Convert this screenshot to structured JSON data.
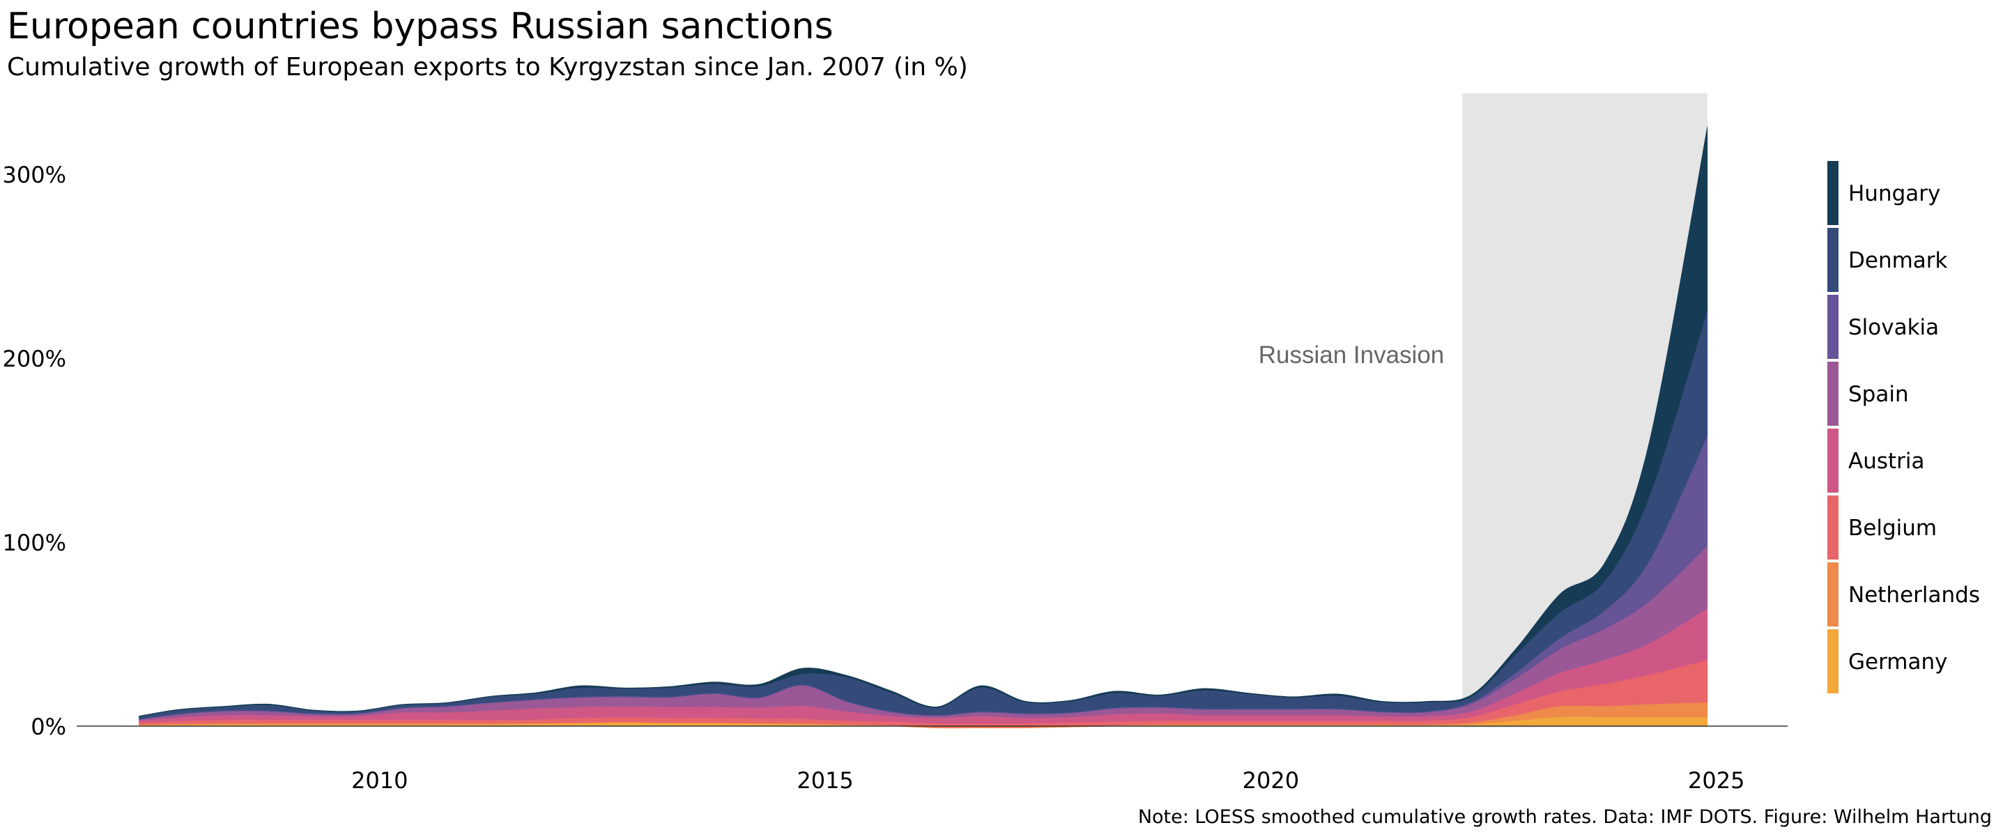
{
  "title": "European countries bypass Russian sanctions",
  "subtitle": "Cumulative growth of European exports to Kyrgyzstan since Jan. 2007 (in %)",
  "note": "Note: LOESS smoothed cumulative growth rates. Data: IMF DOTS. Figure: Wilhelm Hartung",
  "chart_data": {
    "type": "area",
    "stacked": true,
    "x": [
      2007.3,
      2007.75,
      2008.25,
      2008.75,
      2009.25,
      2009.75,
      2010.25,
      2010.75,
      2011.25,
      2011.75,
      2012.25,
      2012.75,
      2013.25,
      2013.75,
      2014.25,
      2014.75,
      2015.25,
      2015.75,
      2016.25,
      2016.75,
      2017.25,
      2017.75,
      2018.25,
      2018.75,
      2019.25,
      2019.75,
      2020.25,
      2020.75,
      2021.25,
      2021.75,
      2022.25,
      2022.75,
      2023.25,
      2023.75,
      2024.25,
      2024.9
    ],
    "series": [
      {
        "name": "Germany",
        "color": "#F3A83B",
        "values": [
          0.5,
          0.8,
          1.0,
          1.0,
          1.0,
          1.0,
          1.0,
          1.0,
          1.0,
          1.2,
          1.5,
          1.8,
          1.5,
          1.5,
          1.2,
          1.0,
          0.5,
          0,
          -1,
          -1,
          -1,
          -0.5,
          0,
          0.5,
          0.5,
          0.5,
          0.5,
          0.5,
          0.5,
          0.5,
          1,
          3,
          5,
          5,
          5,
          5
        ]
      },
      {
        "name": "Netherlands",
        "color": "#EE8A4A",
        "values": [
          0.5,
          0.5,
          0.5,
          0.5,
          0.5,
          0.5,
          0.5,
          0.5,
          0.5,
          0.5,
          0.5,
          0.5,
          0.5,
          0.5,
          0.5,
          0.5,
          0.5,
          0.5,
          0.5,
          0.5,
          0.5,
          0.5,
          0.5,
          0.5,
          0.5,
          0.5,
          0.5,
          0.5,
          0.5,
          0.5,
          1,
          3,
          6,
          6,
          7,
          8
        ]
      },
      {
        "name": "Belgium",
        "color": "#E8656A",
        "values": [
          1,
          1.5,
          2,
          2,
          2,
          2,
          2,
          2,
          2,
          2,
          2.5,
          2.5,
          2.5,
          2.5,
          2.5,
          2.5,
          2,
          2,
          2,
          2,
          2,
          2,
          2,
          2,
          2,
          2,
          2,
          2,
          2,
          2,
          3,
          6,
          8,
          12,
          16,
          23
        ]
      },
      {
        "name": "Austria",
        "color": "#CF5786",
        "values": [
          1,
          2,
          2.5,
          2.5,
          2,
          2,
          4,
          4,
          5,
          6,
          6,
          6,
          6,
          6,
          6,
          7,
          5,
          3,
          3,
          4,
          3,
          3,
          4,
          4,
          3,
          3,
          3,
          3,
          2.5,
          2.5,
          3,
          6,
          10,
          13,
          17,
          28
        ]
      },
      {
        "name": "Spain",
        "color": "#9B5896",
        "values": [
          0.5,
          1.5,
          2,
          2,
          1,
          1,
          2,
          3,
          4,
          4.5,
          5,
          5,
          5,
          7,
          5,
          11,
          5,
          2,
          1,
          2,
          2,
          2,
          3,
          3,
          3,
          3,
          3,
          3,
          2,
          2,
          4,
          8,
          13,
          17,
          23,
          34
        ]
      },
      {
        "name": "Slovakia",
        "color": "#655496",
        "values": [
          0.3,
          0.5,
          0.5,
          0.5,
          0.5,
          0.5,
          0.5,
          0.5,
          0.5,
          0.5,
          0.5,
          0.5,
          0.5,
          0.5,
          0.5,
          0.5,
          0.5,
          0.5,
          0.5,
          0.5,
          0.5,
          0.5,
          0.5,
          0.5,
          0.5,
          0.5,
          0.5,
          0.5,
          0.5,
          0.5,
          1,
          3,
          6,
          10,
          22,
          60
        ]
      },
      {
        "name": "Denmark",
        "color": "#344B7A",
        "values": [
          1.5,
          2,
          2,
          3,
          1.5,
          1,
          1.5,
          1.5,
          3,
          3,
          5,
          4,
          5,
          5,
          6,
          6,
          13,
          10,
          4,
          13,
          6,
          6,
          8,
          6,
          10,
          8,
          6,
          7,
          5,
          5,
          3,
          10,
          14,
          16,
          35,
          68
        ]
      },
      {
        "name": "Hungary",
        "color": "#163C55",
        "values": [
          0.2,
          0.3,
          0.3,
          0.5,
          0.3,
          0.3,
          0.3,
          0.3,
          0.3,
          0.5,
          1,
          0.5,
          0.5,
          1,
          1,
          3,
          1,
          1,
          0.5,
          1,
          0.5,
          0.5,
          1,
          0.5,
          1,
          0.5,
          0.5,
          1,
          0.5,
          0.5,
          1,
          3,
          10,
          10,
          30,
          100
        ]
      }
    ],
    "ylim": [
      -3,
      340
    ],
    "xlim": [
      2006.6,
      2025.8
    ],
    "yticks": [
      "0%",
      "100%",
      "200%",
      "300%"
    ],
    "xticks": [
      "2010",
      "2015",
      "2020",
      "2025"
    ],
    "shaded_region": {
      "x": [
        2022.15,
        2024.9
      ],
      "label": "Russian Invasion",
      "color": "#E5E5E5"
    },
    "legend": {
      "placement": "right"
    },
    "grid": false
  }
}
